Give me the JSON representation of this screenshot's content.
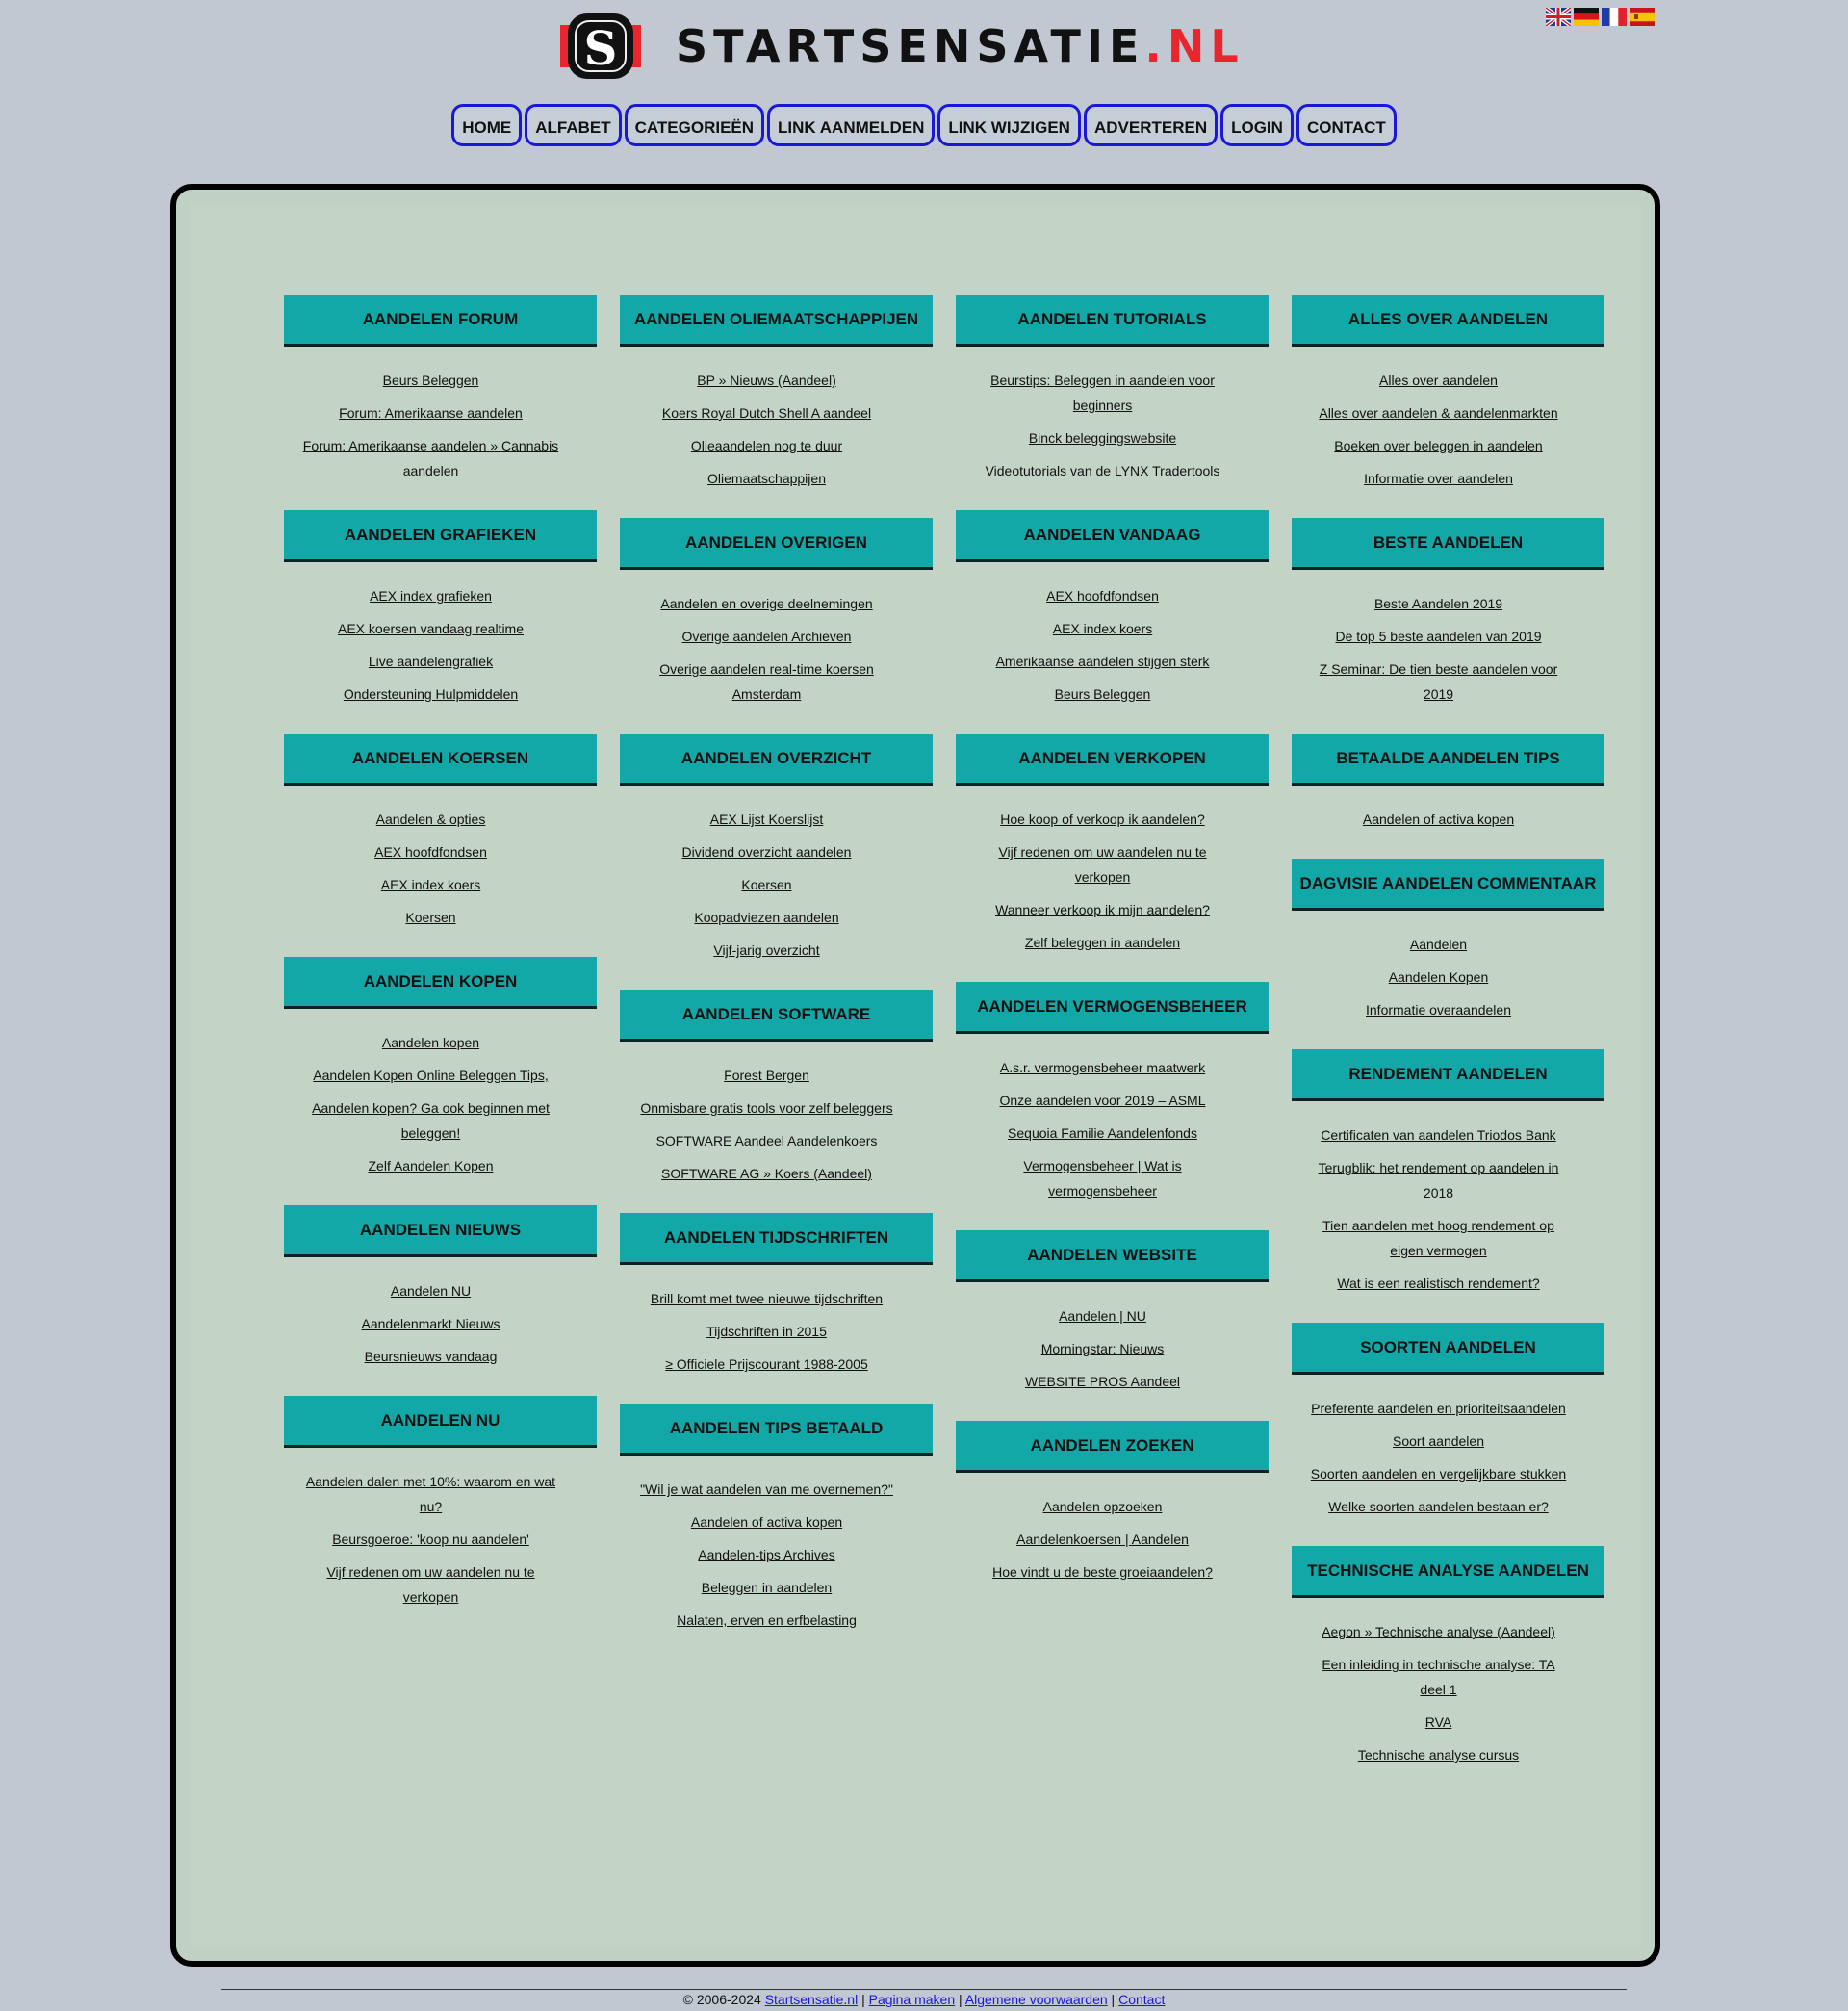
{
  "site": {
    "logo_text": "STARTSENSATIE",
    "logo_tld": ".NL",
    "logo_letter": "S",
    "colors": {
      "accent_red": "#e8262e",
      "nav_border": "#1a17d8",
      "category_bg": "#13a8a8",
      "panel_bg": "#c3d3c6"
    }
  },
  "flags": [
    "flag-uk-icon",
    "flag-de-icon",
    "flag-fr-icon",
    "flag-es-icon"
  ],
  "nav": [
    "HOME",
    "ALFABET",
    "CATEGORIEËN",
    "LINK AANMELDEN",
    "LINK WIJZIGEN",
    "ADVERTEREN",
    "LOGIN",
    "CONTACT"
  ],
  "columns": [
    [
      {
        "title": "AANDELEN FORUM",
        "links": [
          "Beurs Beleggen",
          "Forum: Amerikaanse aandelen",
          "Forum: Amerikaanse aandelen » Cannabis aandelen"
        ]
      },
      {
        "title": "AANDELEN GRAFIEKEN",
        "links": [
          "AEX index grafieken",
          "AEX koersen vandaag realtime",
          "Live aandelengrafiek",
          "Ondersteuning Hulpmiddelen"
        ]
      },
      {
        "title": "AANDELEN KOERSEN",
        "links": [
          "Aandelen & opties",
          "AEX hoofdfondsen",
          "AEX index koers",
          "Koersen"
        ]
      },
      {
        "title": "AANDELEN KOPEN",
        "links": [
          "Aandelen kopen",
          "Aandelen Kopen Online Beleggen Tips,",
          "Aandelen kopen? Ga ook beginnen met beleggen!",
          "Zelf Aandelen Kopen"
        ]
      },
      {
        "title": "AANDELEN NIEUWS",
        "links": [
          "Aandelen NU",
          "Aandelenmarkt Nieuws",
          "Beursnieuws vandaag"
        ]
      },
      {
        "title": "AANDELEN NU",
        "links": [
          "Aandelen dalen met 10%: waarom en wat nu?",
          "Beursgoeroe: 'koop nu aandelen'",
          "Vijf redenen om uw aandelen nu te verkopen"
        ]
      }
    ],
    [
      {
        "title": "AANDELEN OLIEMAATSCHAPPIJEN",
        "links": [
          "BP » Nieuws (Aandeel)",
          "Koers Royal Dutch Shell A aandeel",
          "Olieaandelen nog te duur",
          "Oliemaatschappijen"
        ]
      },
      {
        "title": "AANDELEN OVERIGEN",
        "links": [
          "Aandelen en overige deelnemingen",
          "Overige aandelen Archieven",
          "Overige aandelen real-time koersen Amsterdam"
        ]
      },
      {
        "title": "AANDELEN OVERZICHT",
        "links": [
          "AEX Lijst Koerslijst",
          "Dividend overzicht aandelen",
          "Koersen",
          "Koopadviezen aandelen",
          "Vijf-jarig overzicht"
        ]
      },
      {
        "title": "AANDELEN SOFTWARE",
        "links": [
          "Forest Bergen",
          "Onmisbare gratis tools voor zelf beleggers",
          "SOFTWARE Aandeel Aandelenkoers",
          "SOFTWARE AG » Koers (Aandeel)"
        ]
      },
      {
        "title": "AANDELEN TIJDSCHRIFTEN",
        "links": [
          "Brill komt met twee nieuwe tijdschriften",
          "Tijdschriften in 2015",
          "≥ Officiele Prijscourant 1988-2005"
        ]
      },
      {
        "title": "AANDELEN TIPS BETAALD",
        "links": [
          "\"Wil je wat aandelen van me overnemen?\"",
          "Aandelen of activa kopen",
          "Aandelen-tips Archives",
          "Beleggen in aandelen",
          "Nalaten, erven en erfbelasting"
        ]
      }
    ],
    [
      {
        "title": "AANDELEN TUTORIALS",
        "links": [
          "Beurstips: Beleggen in aandelen voor beginners",
          "Binck beleggingswebsite",
          "Videotutorials van de LYNX Tradertools"
        ]
      },
      {
        "title": "AANDELEN VANDAAG",
        "links": [
          "AEX hoofdfondsen",
          "AEX index koers",
          "Amerikaanse aandelen stijgen sterk",
          "Beurs Beleggen"
        ]
      },
      {
        "title": "AANDELEN VERKOPEN",
        "links": [
          "Hoe koop of verkoop ik aandelen?",
          "Vijf redenen om uw aandelen nu te verkopen",
          "Wanneer verkoop ik mijn aandelen?",
          "Zelf beleggen in aandelen"
        ]
      },
      {
        "title": "AANDELEN VERMOGENSBEHEER",
        "links": [
          "A.s.r. vermogensbeheer maatwerk",
          "Onze aandelen voor 2019 – ASML",
          "Sequoia Familie Aandelenfonds",
          "Vermogensbeheer | Wat is vermogensbeheer"
        ]
      },
      {
        "title": "AANDELEN WEBSITE",
        "links": [
          "Aandelen | NU",
          "Morningstar: Nieuws",
          "WEBSITE PROS Aandeel"
        ]
      },
      {
        "title": "AANDELEN ZOEKEN",
        "links": [
          "Aandelen opzoeken",
          "Aandelenkoersen | Aandelen",
          "Hoe vindt u de beste groeiaandelen?"
        ]
      }
    ],
    [
      {
        "title": "ALLES OVER AANDELEN",
        "links": [
          "Alles over aandelen",
          "Alles over aandelen & aandelenmarkten",
          "Boeken over beleggen in aandelen",
          "Informatie over aandelen"
        ]
      },
      {
        "title": "BESTE AANDELEN",
        "links": [
          "Beste Aandelen 2019",
          "De top 5 beste aandelen van 2019",
          "Z Seminar: De tien beste aandelen voor 2019"
        ]
      },
      {
        "title": "BETAALDE AANDELEN TIPS",
        "links": [
          "Aandelen of activa kopen"
        ]
      },
      {
        "title": "DAGVISIE AANDELEN COMMENTAAR",
        "links": [
          "Aandelen",
          "Aandelen Kopen",
          "Informatie overaandelen"
        ]
      },
      {
        "title": "RENDEMENT AANDELEN",
        "links": [
          "Certificaten van aandelen Triodos Bank",
          "Terugblik: het rendement op aandelen in 2018",
          "Tien aandelen met hoog rendement op eigen vermogen",
          "Wat is een realistisch rendement?"
        ]
      },
      {
        "title": "SOORTEN AANDELEN",
        "links": [
          "Preferente aandelen en prioriteitsaandelen",
          "Soort aandelen",
          "Soorten aandelen en vergelijkbare stukken",
          "Welke soorten aandelen bestaan er?"
        ]
      },
      {
        "title": "TECHNISCHE ANALYSE AANDELEN",
        "links": [
          "Aegon » Technische analyse (Aandeel)",
          "Een inleiding in technische analyse: TA deel 1",
          "RVA",
          "Technische analyse cursus"
        ]
      }
    ]
  ],
  "footer": {
    "copyright": "© 2006-2024",
    "links": [
      "Startsensatie.nl",
      "Pagina maken",
      "Algemene voorwaarden",
      "Contact"
    ],
    "separator": " | "
  }
}
